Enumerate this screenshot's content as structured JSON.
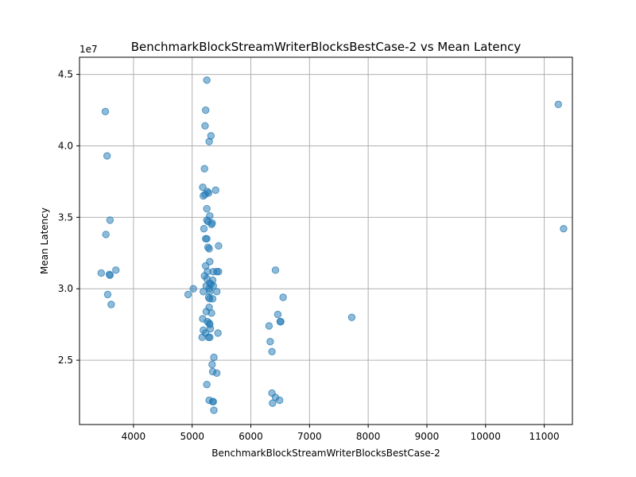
{
  "chart_data": {
    "type": "scatter",
    "title": "BenchmarkBlockStreamWriterBlocksBestCase-2 vs Mean Latency",
    "xlabel": "BenchmarkBlockStreamWriterBlocksBestCase-2",
    "ylabel": "Mean Latency",
    "y_offset_label": "1e7",
    "xlim": [
      3080,
      11480
    ],
    "ylim": [
      20500000,
      46200000
    ],
    "x_ticks": [
      4000,
      5000,
      6000,
      7000,
      8000,
      9000,
      10000,
      11000
    ],
    "y_ticks": [
      25000000,
      30000000,
      35000000,
      40000000,
      45000000
    ],
    "x_tick_labels": [
      "4000",
      "5000",
      "6000",
      "7000",
      "8000",
      "9000",
      "10000",
      "11000"
    ],
    "y_tick_labels": [
      "2.5",
      "3.0",
      "3.5",
      "4.0",
      "4.5"
    ],
    "grid": true,
    "marker_color": "#1f77b4",
    "marker_alpha": 0.5,
    "points": [
      [
        3520,
        42400000
      ],
      [
        3550,
        39300000
      ],
      [
        3600,
        34800000
      ],
      [
        3530,
        33800000
      ],
      [
        3700,
        31300000
      ],
      [
        3450,
        31100000
      ],
      [
        3590,
        31000000
      ],
      [
        3600,
        30950000
      ],
      [
        3560,
        29600000
      ],
      [
        3620,
        28900000
      ],
      [
        5250,
        44600000
      ],
      [
        5230,
        42500000
      ],
      [
        5220,
        41400000
      ],
      [
        5320,
        40700000
      ],
      [
        5290,
        40300000
      ],
      [
        5210,
        38400000
      ],
      [
        5180,
        37100000
      ],
      [
        5260,
        36800000
      ],
      [
        5280,
        36700000
      ],
      [
        5400,
        36900000
      ],
      [
        5220,
        36600000
      ],
      [
        5190,
        36500000
      ],
      [
        5250,
        35600000
      ],
      [
        5300,
        35100000
      ],
      [
        5250,
        34800000
      ],
      [
        5340,
        34600000
      ],
      [
        5270,
        34700000
      ],
      [
        5330,
        34500000
      ],
      [
        5200,
        34200000
      ],
      [
        5230,
        33500000
      ],
      [
        5250,
        33500000
      ],
      [
        5450,
        33000000
      ],
      [
        5270,
        32900000
      ],
      [
        5290,
        32800000
      ],
      [
        5300,
        31900000
      ],
      [
        5230,
        31600000
      ],
      [
        5260,
        31200000
      ],
      [
        5360,
        31200000
      ],
      [
        5420,
        31200000
      ],
      [
        5450,
        31200000
      ],
      [
        5210,
        30900000
      ],
      [
        5250,
        30700000
      ],
      [
        5350,
        30600000
      ],
      [
        5300,
        30400000
      ],
      [
        5320,
        30300000
      ],
      [
        5240,
        30200000
      ],
      [
        5290,
        30000000
      ],
      [
        5360,
        30200000
      ],
      [
        5020,
        30000000
      ],
      [
        5190,
        29800000
      ],
      [
        5300,
        29800000
      ],
      [
        5420,
        29800000
      ],
      [
        4930,
        29600000
      ],
      [
        5280,
        29400000
      ],
      [
        5300,
        29300000
      ],
      [
        5350,
        29300000
      ],
      [
        5290,
        28700000
      ],
      [
        5240,
        28400000
      ],
      [
        5330,
        28300000
      ],
      [
        5180,
        27900000
      ],
      [
        5260,
        27700000
      ],
      [
        5290,
        27600000
      ],
      [
        5300,
        27500000
      ],
      [
        5310,
        27200000
      ],
      [
        5190,
        27100000
      ],
      [
        5230,
        26900000
      ],
      [
        5440,
        26900000
      ],
      [
        5170,
        26600000
      ],
      [
        5280,
        26600000
      ],
      [
        5300,
        26600000
      ],
      [
        5370,
        25200000
      ],
      [
        5340,
        24700000
      ],
      [
        5350,
        24200000
      ],
      [
        5420,
        24100000
      ],
      [
        5250,
        23300000
      ],
      [
        5290,
        22200000
      ],
      [
        5350,
        22100000
      ],
      [
        5360,
        22100000
      ],
      [
        5370,
        21500000
      ],
      [
        6420,
        31300000
      ],
      [
        6550,
        29400000
      ],
      [
        6460,
        28200000
      ],
      [
        6500,
        27700000
      ],
      [
        6510,
        27700000
      ],
      [
        6310,
        27400000
      ],
      [
        6330,
        26300000
      ],
      [
        6360,
        25600000
      ],
      [
        6360,
        22700000
      ],
      [
        6420,
        22400000
      ],
      [
        6490,
        22200000
      ],
      [
        6370,
        22000000
      ],
      [
        7720,
        28000000
      ],
      [
        11240,
        42900000
      ],
      [
        11330,
        34200000
      ]
    ]
  }
}
